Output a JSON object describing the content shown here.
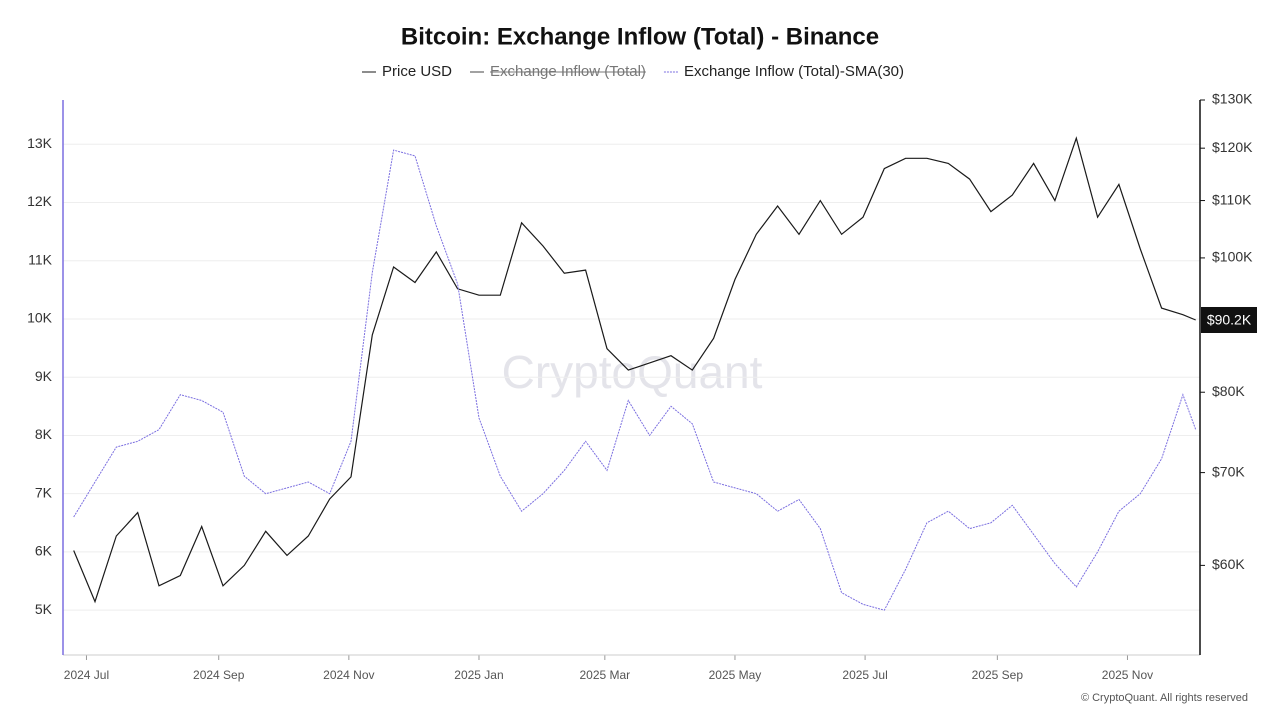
{
  "chart_data": {
    "type": "line",
    "title": "Bitcoin: Exchange Inflow (Total) - Binance",
    "watermark": "CryptoQuant",
    "footer": "© CryptoQuant. All rights reserved",
    "x": [
      "2024-06-25",
      "2024-07-05",
      "2024-07-15",
      "2024-07-25",
      "2024-08-04",
      "2024-08-14",
      "2024-08-24",
      "2024-09-03",
      "2024-09-13",
      "2024-09-23",
      "2024-10-03",
      "2024-10-13",
      "2024-10-23",
      "2024-11-02",
      "2024-11-12",
      "2024-11-22",
      "2024-12-02",
      "2024-12-12",
      "2024-12-22",
      "2025-01-01",
      "2025-01-11",
      "2025-01-21",
      "2025-01-31",
      "2025-02-10",
      "2025-02-20",
      "2025-03-02",
      "2025-03-12",
      "2025-03-22",
      "2025-04-01",
      "2025-04-11",
      "2025-04-21",
      "2025-05-01",
      "2025-05-11",
      "2025-05-21",
      "2025-05-31",
      "2025-06-10",
      "2025-06-20",
      "2025-06-30",
      "2025-07-10",
      "2025-07-20",
      "2025-07-30",
      "2025-08-09",
      "2025-08-19",
      "2025-08-29",
      "2025-09-08",
      "2025-09-18",
      "2025-09-28",
      "2025-10-08",
      "2025-10-18",
      "2025-10-28",
      "2025-11-07",
      "2025-11-17",
      "2025-11-27",
      "2025-12-03"
    ],
    "xlim": [
      "2024-06-20",
      "2025-12-05"
    ],
    "xticks": [
      {
        "value": "2024-07-01",
        "label": "2024 Jul"
      },
      {
        "value": "2024-09-01",
        "label": "2024 Sep"
      },
      {
        "value": "2024-11-01",
        "label": "2024 Nov"
      },
      {
        "value": "2025-01-01",
        "label": "2025 Jan"
      },
      {
        "value": "2025-03-01",
        "label": "2025 Mar"
      },
      {
        "value": "2025-05-01",
        "label": "2025 May"
      },
      {
        "value": "2025-07-01",
        "label": "2025 Jul"
      },
      {
        "value": "2025-09-01",
        "label": "2025 Sep"
      },
      {
        "value": "2025-11-01",
        "label": "2025 Nov"
      }
    ],
    "ylim": [
      4230,
      13760
    ],
    "yticks": [
      {
        "value": 5000,
        "label": "5K"
      },
      {
        "value": 6000,
        "label": "6K"
      },
      {
        "value": 7000,
        "label": "7K"
      },
      {
        "value": 8000,
        "label": "8K"
      },
      {
        "value": 9000,
        "label": "9K"
      },
      {
        "value": 10000,
        "label": "10K"
      },
      {
        "value": 11000,
        "label": "11K"
      },
      {
        "value": 12000,
        "label": "12K"
      },
      {
        "value": 13000,
        "label": "13K"
      }
    ],
    "y2lim": [
      51700,
      130000
    ],
    "y2_log": true,
    "y2ticks": [
      {
        "value": 60000,
        "label": "$60K"
      },
      {
        "value": 70000,
        "label": "$70K"
      },
      {
        "value": 80000,
        "label": "$80K"
      },
      {
        "value": 100000,
        "label": "$100K"
      },
      {
        "value": 110000,
        "label": "$110K"
      },
      {
        "value": 120000,
        "label": "$120K"
      },
      {
        "value": 130000,
        "label": "$130K"
      }
    ],
    "grid": true,
    "last_value": {
      "value": 90200,
      "label": "$90.2K"
    },
    "hidden_series": [
      {
        "name": "Exchange Inflow (Total)",
        "color": "#444444"
      }
    ],
    "series": [
      {
        "name": "Price USD",
        "color": "#1a1a1a",
        "axis": "y2",
        "values": [
          61500,
          56500,
          63000,
          65500,
          58000,
          59000,
          64000,
          58000,
          60000,
          63500,
          61000,
          63000,
          67000,
          69500,
          88000,
          98500,
          96000,
          101000,
          95000,
          94000,
          94000,
          106000,
          102000,
          97500,
          98000,
          86000,
          83000,
          84000,
          85000,
          83000,
          87500,
          96500,
          104000,
          109000,
          104000,
          110000,
          104000,
          107000,
          116000,
          118000,
          118000,
          117000,
          114000,
          108000,
          111000,
          117000,
          110000,
          122000,
          107000,
          113000,
          101500,
          92000,
          91000,
          90200
        ]
      },
      {
        "name": "Exchange Inflow (Total)-SMA(30)",
        "color": "#7b6fe0",
        "axis": "y",
        "values": [
          6600,
          7200,
          7800,
          7900,
          8100,
          8700,
          8600,
          8400,
          7300,
          7000,
          7100,
          7200,
          7000,
          7900,
          10800,
          12900,
          12800,
          11600,
          10600,
          8300,
          7300,
          6700,
          7000,
          7400,
          7900,
          7400,
          8600,
          8000,
          8500,
          8200,
          7200,
          7100,
          7000,
          6700,
          6900,
          6400,
          5300,
          5100,
          5000,
          5700,
          6500,
          6700,
          6400,
          6500,
          6800,
          6300,
          5800,
          5400,
          6000,
          6700,
          7000,
          7600,
          8700,
          8100
        ]
      }
    ]
  }
}
